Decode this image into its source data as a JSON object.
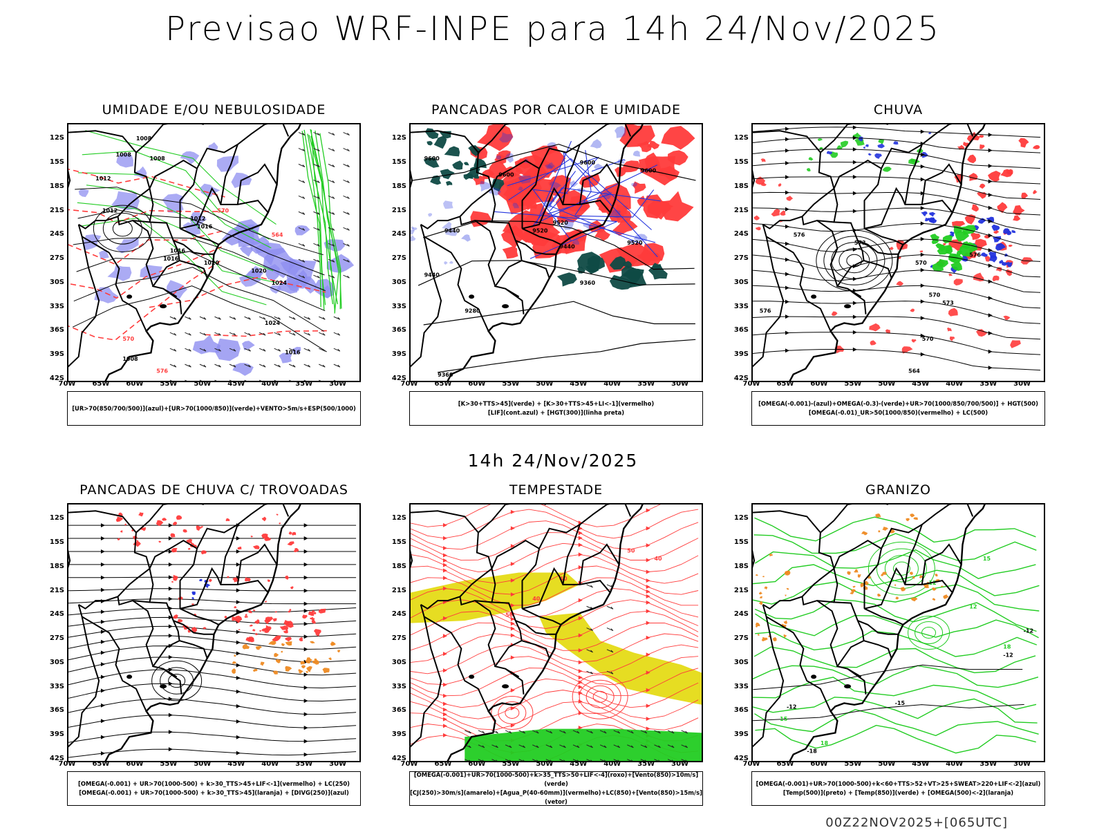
{
  "main_title": "Previsao WRF-INPE  para 14h 24/Nov/2025",
  "mid_date": "14h 24/Nov/2025",
  "footer": "00Z22NOV2025+[065UTC]",
  "axes": {
    "lat_ticks": [
      "12S",
      "15S",
      "18S",
      "21S",
      "24S",
      "27S",
      "30S",
      "33S",
      "36S",
      "39S",
      "42S"
    ],
    "lon_ticks": [
      "70W",
      "65W",
      "60W",
      "55W",
      "50W",
      "45W",
      "40W",
      "35W",
      "30W"
    ]
  },
  "colors": {
    "blue_fill": "#8f8ff0",
    "green_contour": "#22cc22",
    "red": "#ff3b3b",
    "dark_teal": "#0f4a45",
    "yellow": "#e6dd22",
    "orange": "#ee8a22",
    "contour_blue": "#2233dd",
    "black": "#000000"
  },
  "panels": [
    {
      "id": "umidade",
      "title": "UMIDADE E/OU NEBULOSIDADE",
      "legend": [
        "[UR>70(850/700/500)](azul)+[UR>70(1000/850)](verde)+VENTO>5m/s+ESP(500/1000)"
      ],
      "labels": [
        "1008",
        "1008",
        "1008",
        "1012",
        "1012",
        "1012",
        "1016",
        "1016",
        "1016",
        "1020",
        "1020",
        "1024",
        "1024",
        "1016",
        "1008",
        "576",
        "570",
        "564",
        "570"
      ]
    },
    {
      "id": "pancadas_calor",
      "title": "PANCADAS POR CALOR E UMIDADE",
      "legend": [
        "[K>30+TTS>45](verde) + [K>30+TTS>45+LI<-1](vermelho)",
        "[LIF](cont.azul) + [HGT(300)](linha preta)"
      ],
      "labels": [
        "9600",
        "9600",
        "9600",
        "9600",
        "9520",
        "9520",
        "9520",
        "9440",
        "9440",
        "9440",
        "9360",
        "9280",
        "9360"
      ]
    },
    {
      "id": "chuva",
      "title": "CHUVA",
      "legend": [
        "[OMEGA(-0.001)-(azul)+OMEGA(-0.3)-(verde)+UR>70(1000/850/700/500)] + HGT(500)",
        "[OMEGA(-0.01)_UR>50(1000/850)(vermelho) + LC(500)"
      ],
      "labels": [
        "576",
        "576",
        "573",
        "570",
        "576",
        "573",
        "570",
        "570",
        "564",
        "573"
      ]
    },
    {
      "id": "pancadas_trovoadas",
      "title": "PANCADAS DE CHUVA C/ TROVOADAS",
      "legend": [
        "[OMEGA(-0.001) + UR>70(1000-500) + k>30_TTS>45+LIF<-1](vermelho) + LC(250)",
        "[OMEGA(-0.001) + UR>70(1000-500) + k>30_TTS>45](laranja) + [DIVG(250)](azul)"
      ],
      "labels": []
    },
    {
      "id": "tempestade",
      "title": "TEMPESTADE",
      "legend": [
        "[OMEGA(-0.001)+UR>70(1000-500)+k>35_TTS>50+LIF<-4](roxo)+[Vento(850)>10m/s](verde)",
        "[CJ(250)>30m/s](amarelo)+[Agua_P(40-60mm)](vermelho)+LC(850)+[Vento(850)>15m/s](vetor)"
      ],
      "labels": [
        "40",
        "40",
        "50",
        "40",
        "50"
      ]
    },
    {
      "id": "granizo",
      "title": "GRANIZO",
      "legend": [
        "[OMEGA(-0.001)+UR>70(1000-500)+k<60+TTS>52+VT>25+SWEAT>220+LIF<-2](azul)",
        "[Temp(500)](preto) + [Temp(850)](verde) + [OMEGA(500)<-2](laranja)"
      ],
      "labels": [
        "-12",
        "-12",
        "-12",
        "-15",
        "12",
        "15",
        "18",
        "15",
        "18",
        "12",
        "-18"
      ]
    }
  ]
}
